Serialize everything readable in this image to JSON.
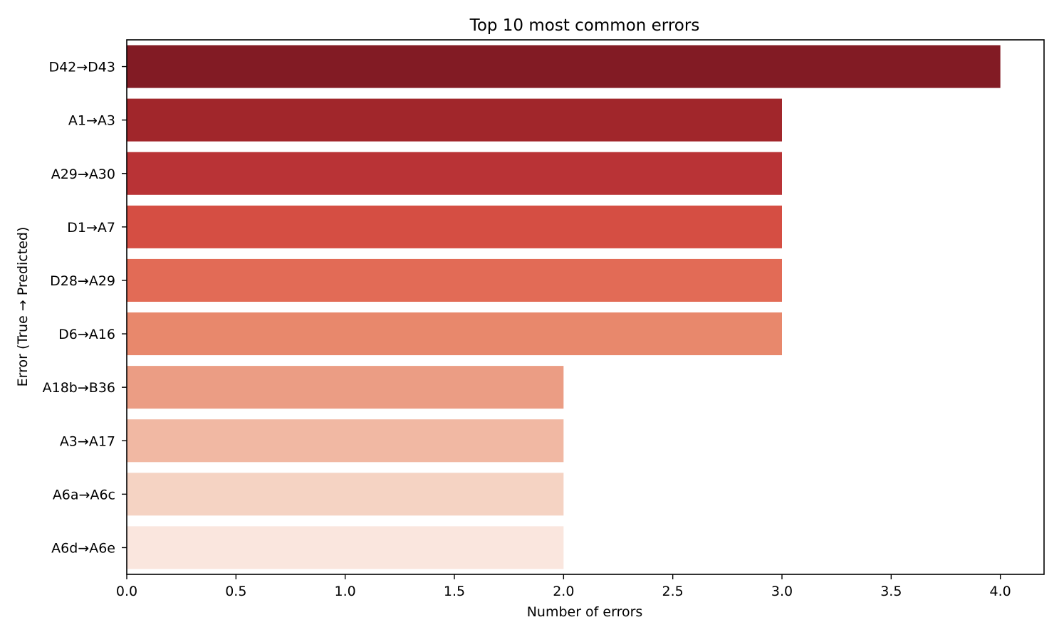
{
  "chart_data": {
    "type": "bar",
    "orientation": "horizontal",
    "title": "Top 10 most common errors",
    "xlabel": "Number of errors",
    "ylabel": "Error (True → Predicted)",
    "xlim": [
      0,
      4.2
    ],
    "xticks": [
      "0.0",
      "0.5",
      "1.0",
      "1.5",
      "2.0",
      "2.5",
      "3.0",
      "3.5",
      "4.0"
    ],
    "grid": false,
    "categories": [
      "D42→D43",
      "A1→A3",
      "A29→A30",
      "D1→A7",
      "D28→A29",
      "D6→A16",
      "A18b→B36",
      "A3→A17",
      "A6a→A6c",
      "A6d→A6e"
    ],
    "values": [
      4,
      3,
      3,
      3,
      3,
      3,
      2,
      2,
      2,
      2
    ],
    "colors": [
      "#821b24",
      "#a1262b",
      "#b93336",
      "#d54e43",
      "#e26b56",
      "#e8886c",
      "#eb9d84",
      "#f1b8a3",
      "#f5d3c3",
      "#fae6de"
    ]
  }
}
